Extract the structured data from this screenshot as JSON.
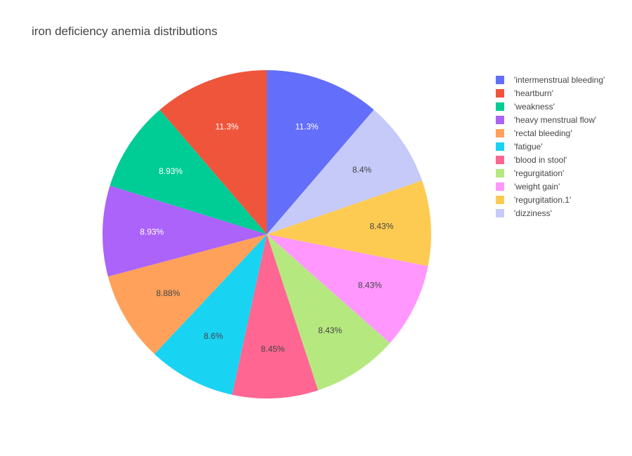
{
  "chart_data": {
    "type": "pie",
    "title": "iron deficiency anemia distributions",
    "direction": "clockwise",
    "legend_position": "right",
    "slices": [
      {
        "label": "'intermenstrual bleeding'",
        "value": 11.3,
        "text": "11.3%",
        "color": "#636efa"
      },
      {
        "label": "'dizziness'",
        "value": 8.4,
        "text": "8.4%",
        "color": "#c6caf9"
      },
      {
        "label": "'regurgitation.1'",
        "value": 8.43,
        "text": "8.43%",
        "color": "#fecb52"
      },
      {
        "label": "'weight gain'",
        "value": 8.43,
        "text": "8.43%",
        "color": "#ff97ff"
      },
      {
        "label": "'regurgitation'",
        "value": 8.43,
        "text": "8.43%",
        "color": "#b6e880"
      },
      {
        "label": "'blood in stool'",
        "value": 8.45,
        "text": "8.45%",
        "color": "#ff6692"
      },
      {
        "label": "'fatigue'",
        "value": 8.6,
        "text": "8.6%",
        "color": "#19d3f3"
      },
      {
        "label": "'rectal bleeding'",
        "value": 8.88,
        "text": "8.88%",
        "color": "#ffa15a"
      },
      {
        "label": "'heavy menstrual flow'",
        "value": 8.93,
        "text": "8.93%",
        "color": "#ab63fa"
      },
      {
        "label": "'weakness'",
        "value": 8.93,
        "text": "8.93%",
        "color": "#00cc96"
      },
      {
        "label": "'heartburn'",
        "value": 11.3,
        "text": "11.3%",
        "color": "#ef553b"
      }
    ],
    "legend": [
      {
        "label": "'intermenstrual bleeding'",
        "color": "#636efa"
      },
      {
        "label": "'heartburn'",
        "color": "#ef553b"
      },
      {
        "label": "'weakness'",
        "color": "#00cc96"
      },
      {
        "label": "'heavy menstrual flow'",
        "color": "#ab63fa"
      },
      {
        "label": "'rectal bleeding'",
        "color": "#ffa15a"
      },
      {
        "label": "'fatigue'",
        "color": "#19d3f3"
      },
      {
        "label": "'blood in stool'",
        "color": "#ff6692"
      },
      {
        "label": "'regurgitation'",
        "color": "#b6e880"
      },
      {
        "label": "'weight gain'",
        "color": "#ff97ff"
      },
      {
        "label": "'regurgitation.1'",
        "color": "#fecb52"
      },
      {
        "label": "'dizziness'",
        "color": "#c6caf9"
      }
    ]
  }
}
